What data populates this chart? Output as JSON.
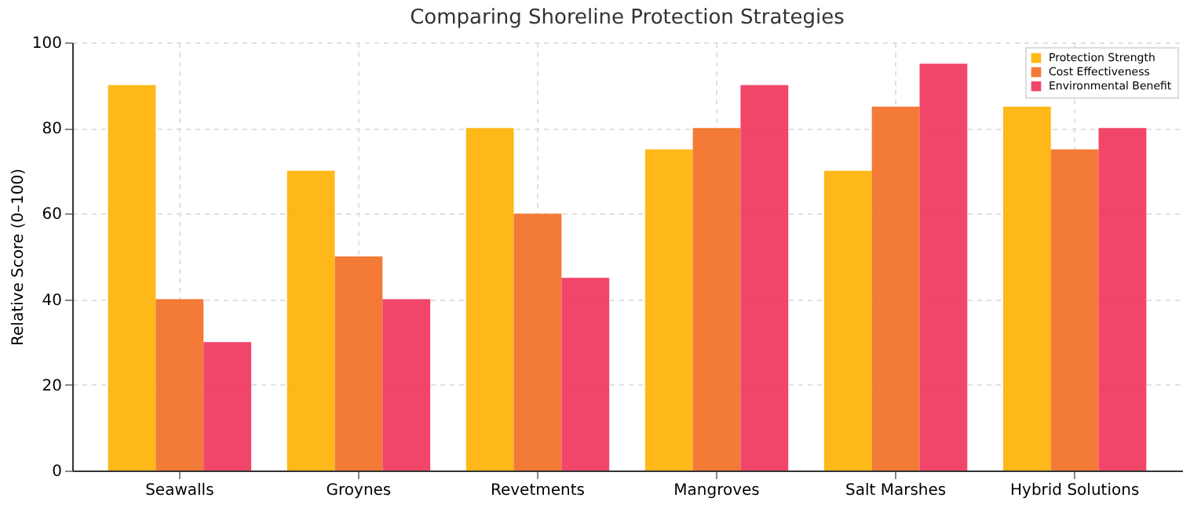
{
  "chart_data": {
    "type": "bar",
    "title": "Comparing Shoreline Protection Strategies",
    "ylabel": "Relative Score (0–100)",
    "categories": [
      "Seawalls",
      "Groynes",
      "Revetments",
      "Mangroves",
      "Salt Marshes",
      "Hybrid Solutions"
    ],
    "series": [
      {
        "name": "Protection Strength",
        "color": "#ffb000",
        "values": [
          90,
          70,
          80,
          75,
          70,
          85
        ]
      },
      {
        "name": "Cost Effectiveness",
        "color": "#f26b21",
        "values": [
          40,
          50,
          60,
          80,
          85,
          75
        ]
      },
      {
        "name": "Environmental Benefit",
        "color": "#f0325a",
        "values": [
          30,
          40,
          45,
          90,
          95,
          80
        ]
      }
    ],
    "ylim": [
      0,
      100
    ],
    "yticks": [
      0,
      20,
      40,
      60,
      80,
      100
    ],
    "grid": true,
    "legend": "top right"
  }
}
